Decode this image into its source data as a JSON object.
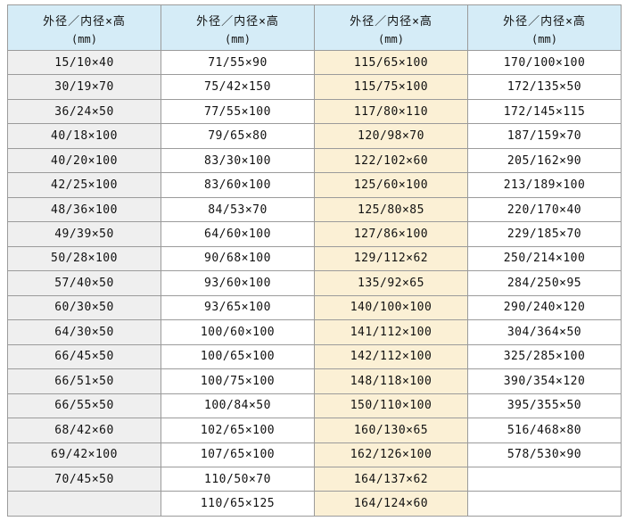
{
  "table": {
    "name": "dimension-spec-table",
    "columns": [
      {
        "title": "外径／内径×高",
        "unit": "(mm)"
      },
      {
        "title": "外径／内径×高",
        "unit": "(mm)"
      },
      {
        "title": "外径／内径×高",
        "unit": "(mm)"
      },
      {
        "title": "外径／内径×高",
        "unit": "(mm)"
      }
    ],
    "rows": [
      [
        "15/10×40",
        "71/55×90",
        "115/65×100",
        "170/100×100"
      ],
      [
        "30/19×70",
        "75/42×150",
        "115/75×100",
        "172/135×50"
      ],
      [
        "36/24×50",
        "77/55×100",
        "117/80×110",
        "172/145×115"
      ],
      [
        "40/18×100",
        "79/65×80",
        "120/98×70",
        "187/159×70"
      ],
      [
        "40/20×100",
        "83/30×100",
        "122/102×60",
        "205/162×90"
      ],
      [
        "42/25×100",
        "83/60×100",
        "125/60×100",
        "213/189×100"
      ],
      [
        "48/36×100",
        "84/53×70",
        "125/80×85",
        "220/170×40"
      ],
      [
        "49/39×50",
        "64/60×100",
        "127/86×100",
        "229/185×70"
      ],
      [
        "50/28×100",
        "90/68×100",
        "129/112×62",
        "250/214×100"
      ],
      [
        "57/40×50",
        "93/60×100",
        "135/92×65",
        "284/250×95"
      ],
      [
        "60/30×50",
        "93/65×100",
        "140/100×100",
        "290/240×120"
      ],
      [
        "64/30×50",
        "100/60×100",
        "141/112×100",
        "304/364×50"
      ],
      [
        "66/45×50",
        "100/65×100",
        "142/112×100",
        "325/285×100"
      ],
      [
        "66/51×50",
        "100/75×100",
        "148/118×100",
        "390/354×120"
      ],
      [
        "66/55×50",
        "100/84×50",
        "150/110×100",
        "395/355×50"
      ],
      [
        "68/42×60",
        "102/65×100",
        "160/130×65",
        "516/468×80"
      ],
      [
        "69/42×100",
        "107/65×100",
        "162/126×100",
        "578/530×90"
      ],
      [
        "70/45×50",
        "110/50×70",
        "164/137×62",
        ""
      ],
      [
        "",
        "110/65×125",
        "164/124×60",
        ""
      ]
    ],
    "colors": {
      "header_bg": "#d5ecf7",
      "col1_bg": "#efefef",
      "col3_bg": "#fbf0d5",
      "border": "#9b9b9b",
      "text": "#111111"
    }
  }
}
